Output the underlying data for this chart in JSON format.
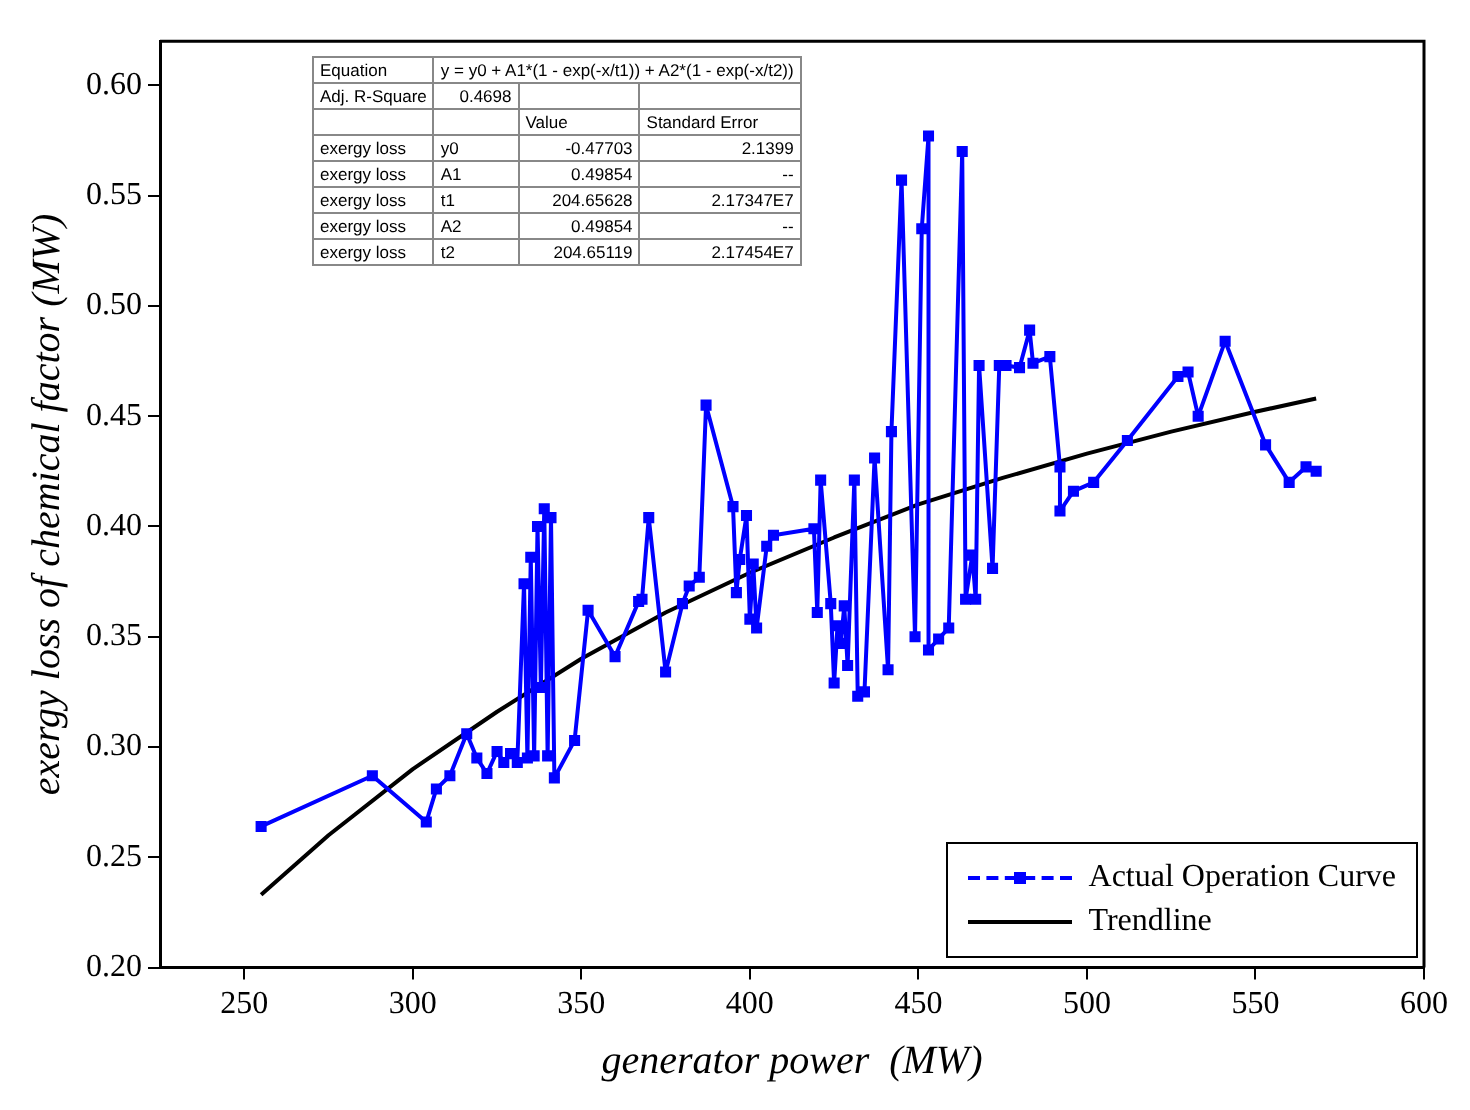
{
  "chart_data": {
    "type": "line",
    "xlabel": "generator power  (MW)",
    "ylabel": "exergy loss of chemical factor (MW)",
    "xlim": [
      225,
      600
    ],
    "xticks": [
      250,
      300,
      350,
      400,
      450,
      500,
      550,
      600
    ],
    "ylim": [
      0.2,
      0.62
    ],
    "yticks": [
      {
        "value": 0.2,
        "label": "0.20"
      },
      0.25,
      {
        "value": 0.3,
        "label": "0.30"
      },
      0.35,
      {
        "value": 0.4,
        "label": "0.40"
      },
      0.45,
      {
        "value": 0.5,
        "label": "0.50"
      },
      0.55,
      {
        "value": 0.6,
        "label": "0.60"
      }
    ],
    "grid": false,
    "legend": "bottom right",
    "series": [
      {
        "name": "Actual Operation Curve",
        "color": "#0000ff",
        "marker": "square",
        "x": [
          255,
          288,
          304,
          307,
          311,
          316,
          319,
          322,
          325,
          327,
          329,
          331,
          333,
          334,
          335,
          336,
          337,
          338,
          339,
          340,
          341,
          342,
          348,
          352,
          360,
          367,
          368,
          370,
          375,
          380,
          382,
          385,
          387,
          395,
          396,
          397,
          399,
          400,
          401,
          402,
          405,
          407,
          419,
          420,
          421,
          424,
          425,
          426,
          427,
          428,
          429,
          431,
          432,
          434,
          437,
          441,
          442,
          445,
          449,
          451,
          453,
          453,
          456,
          459,
          463,
          464,
          466,
          467,
          468,
          472,
          474,
          476,
          480,
          483,
          484,
          489,
          492,
          492,
          496,
          502,
          512,
          527,
          530,
          533,
          541,
          553,
          560,
          565,
          568
        ],
        "values": [
          0.264,
          0.287,
          0.266,
          0.281,
          0.287,
          0.306,
          0.295,
          0.288,
          0.298,
          0.293,
          0.297,
          0.293,
          0.374,
          0.295,
          0.386,
          0.296,
          0.4,
          0.327,
          0.408,
          0.296,
          0.404,
          0.286,
          0.303,
          0.362,
          0.341,
          0.366,
          0.367,
          0.404,
          0.334,
          0.365,
          0.373,
          0.377,
          0.455,
          0.409,
          0.37,
          0.385,
          0.405,
          0.358,
          0.383,
          0.354,
          0.391,
          0.396,
          0.399,
          0.361,
          0.421,
          0.365,
          0.329,
          0.355,
          0.347,
          0.364,
          0.337,
          0.421,
          0.323,
          0.325,
          0.431,
          0.335,
          0.443,
          0.557,
          0.35,
          0.535,
          0.577,
          0.344,
          0.349,
          0.354,
          0.57,
          0.367,
          0.387,
          0.367,
          0.473,
          0.381,
          0.473,
          0.473,
          0.472,
          0.489,
          0.474,
          0.477,
          0.427,
          0.407,
          0.416,
          0.42,
          0.439,
          0.468,
          0.47,
          0.45,
          0.484,
          0.437,
          0.42,
          0.427,
          0.425
        ]
      },
      {
        "name": "Trendline",
        "color": "#000000",
        "marker": "none",
        "x": [
          255,
          275,
          300,
          325,
          350,
          375,
          400,
          425,
          450,
          475,
          500,
          525,
          550,
          568
        ],
        "values": [
          0.233,
          0.26,
          0.29,
          0.316,
          0.34,
          0.361,
          0.379,
          0.395,
          0.41,
          0.422,
          0.433,
          0.443,
          0.452,
          0.458
        ]
      }
    ],
    "annotations": [
      "Equation",
      "y = y0 + A1*(1 - exp(-x/t1)) + A2*(1 - exp(-x/t2))",
      "Adj. R-Square",
      "0.4698",
      "Value",
      "Standard Error",
      "exergy loss",
      "y0",
      "-0.47703",
      "2.1399",
      "exergy loss",
      "A1",
      "0.49854",
      "--",
      "exergy loss",
      "t1",
      "204.65628",
      "2.17347E7",
      "exergy loss",
      "A2",
      "0.49854",
      "--",
      "exergy loss",
      "t2",
      "204.65119",
      "2.17454E7"
    ]
  }
}
